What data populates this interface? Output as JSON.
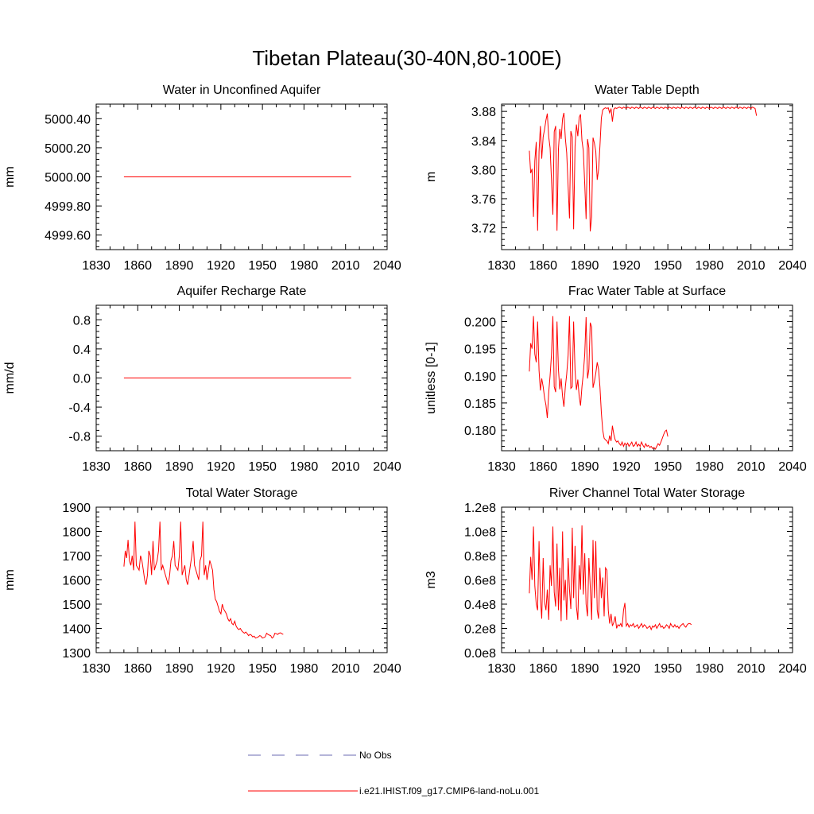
{
  "page": {
    "title": "Tibetan Plateau(30-40N,80-100E)"
  },
  "legend": {
    "placement": "bottom-center",
    "items": [
      {
        "label": "No Obs",
        "color": "#6b6bb3",
        "dash": "dashed"
      },
      {
        "label": "i.e21.IHIST.f09_g17.CMIP6-land-noLu.001",
        "color": "#ff0000",
        "dash": "solid"
      }
    ]
  },
  "chart_data": [
    {
      "type": "line",
      "title": "Water in Unconfined Aquifer",
      "ylabel": "mm",
      "xlim": [
        1830,
        2040
      ],
      "xticks": [
        1830,
        1860,
        1890,
        1920,
        1950,
        1980,
        2010,
        2040
      ],
      "xtick_labels": [
        "1830",
        "1860",
        "1890",
        "1920",
        "1950",
        "1980",
        "2010",
        "2040"
      ],
      "ylim": [
        4999.5,
        5000.5
      ],
      "yticks": [
        4999.6,
        4999.8,
        5000.0,
        5000.2,
        5000.4
      ],
      "ytick_labels": [
        "4999.60",
        "4999.80",
        "5000.00",
        "5000.20",
        "5000.40"
      ],
      "color": "#ff0000",
      "series": [
        {
          "x": [
            1850,
            2014
          ],
          "y": [
            5000.0,
            5000.0
          ]
        }
      ]
    },
    {
      "type": "line",
      "title": "Water Table Depth",
      "ylabel": "m",
      "xlim": [
        1830,
        2040
      ],
      "xticks": [
        1830,
        1860,
        1890,
        1920,
        1950,
        1980,
        2010,
        2040
      ],
      "xtick_labels": [
        "1830",
        "1860",
        "1890",
        "1920",
        "1950",
        "1980",
        "2010",
        "2040"
      ],
      "ylim": [
        3.69,
        3.89
      ],
      "yticks": [
        3.72,
        3.76,
        3.8,
        3.84,
        3.88
      ],
      "ytick_labels": [
        "3.72",
        "3.76",
        "3.80",
        "3.84",
        "3.88"
      ],
      "color": "#ff0000",
      "series": [
        {
          "x_start": 1850,
          "x_step": 1,
          "y": [
            3.826,
            3.795,
            3.801,
            3.735,
            3.812,
            3.838,
            3.716,
            3.825,
            3.86,
            3.815,
            3.845,
            3.855,
            3.868,
            3.877,
            3.845,
            3.83,
            3.787,
            3.738,
            3.852,
            3.86,
            3.716,
            3.828,
            3.856,
            3.842,
            3.87,
            3.878,
            3.843,
            3.823,
            3.777,
            3.733,
            3.853,
            3.845,
            3.718,
            3.832,
            3.862,
            3.846,
            3.872,
            3.876,
            3.84,
            3.826,
            3.78,
            3.732,
            3.842,
            3.83,
            3.715,
            3.735,
            3.844,
            3.836,
            3.825,
            3.786,
            3.8,
            3.832,
            3.871,
            3.882,
            3.884,
            3.885,
            3.884,
            3.885,
            3.878,
            3.884,
            3.866,
            3.883,
            3.885,
            3.884,
            3.885,
            3.886,
            3.885,
            3.884,
            3.886,
            3.885,
            3.884,
            3.886,
            3.885,
            3.884,
            3.886,
            3.885,
            3.884,
            3.886,
            3.885,
            3.884,
            3.886,
            3.885,
            3.884,
            3.886,
            3.885,
            3.884,
            3.886,
            3.885,
            3.884,
            3.886,
            3.885,
            3.884,
            3.886,
            3.885,
            3.884,
            3.886,
            3.885,
            3.884,
            3.886,
            3.885,
            3.884,
            3.886,
            3.885,
            3.884,
            3.886,
            3.885,
            3.884,
            3.886,
            3.885,
            3.884,
            3.886,
            3.885,
            3.884,
            3.886,
            3.885,
            3.884,
            3.886,
            3.885,
            3.884,
            3.886,
            3.885,
            3.884,
            3.886,
            3.885,
            3.884,
            3.886,
            3.885,
            3.884,
            3.886,
            3.885,
            3.884,
            3.886,
            3.885,
            3.884,
            3.886,
            3.885,
            3.884,
            3.886,
            3.885,
            3.884,
            3.886,
            3.885,
            3.884,
            3.886,
            3.885,
            3.884,
            3.886,
            3.885,
            3.884,
            3.886,
            3.885,
            3.884,
            3.886,
            3.885,
            3.884,
            3.886,
            3.885,
            3.884,
            3.886,
            3.885,
            3.884,
            3.886,
            3.885,
            3.884,
            3.874
          ]
        }
      ]
    },
    {
      "type": "line",
      "title": "Aquifer Recharge Rate",
      "ylabel": "mm/d",
      "xlim": [
        1830,
        2040
      ],
      "xticks": [
        1830,
        1860,
        1890,
        1920,
        1950,
        1980,
        2010,
        2040
      ],
      "xtick_labels": [
        "1830",
        "1860",
        "1890",
        "1920",
        "1950",
        "1980",
        "2010",
        "2040"
      ],
      "ylim": [
        -1.0,
        1.0
      ],
      "yticks": [
        -0.8,
        -0.4,
        0.0,
        0.4,
        0.8
      ],
      "ytick_labels": [
        "-0.8",
        "-0.4",
        "0.0",
        "0.4",
        "0.8"
      ],
      "color": "#ff0000",
      "series": [
        {
          "x": [
            1850,
            2014
          ],
          "y": [
            0.0,
            0.0
          ]
        }
      ]
    },
    {
      "type": "line",
      "title": "Frac Water Table at Surface",
      "ylabel": "unitless [0-1]",
      "xlim": [
        1830,
        2040
      ],
      "xticks": [
        1830,
        1860,
        1890,
        1920,
        1950,
        1980,
        2010,
        2040
      ],
      "xtick_labels": [
        "1830",
        "1860",
        "1890",
        "1920",
        "1950",
        "1980",
        "2010",
        "2040"
      ],
      "ylim": [
        0.1762,
        0.203
      ],
      "yticks": [
        0.18,
        0.185,
        0.19,
        0.195,
        0.2
      ],
      "ytick_labels": [
        "0.180",
        "0.185",
        "0.190",
        "0.195",
        "0.200"
      ],
      "color": "#ff0000",
      "series": [
        {
          "x_start": 1850,
          "x_step": 1,
          "y": [
            0.1908,
            0.196,
            0.195,
            0.201,
            0.194,
            0.1925,
            0.2,
            0.191,
            0.1873,
            0.1895,
            0.188,
            0.186,
            0.1846,
            0.1822,
            0.187,
            0.19,
            0.1938,
            0.201,
            0.188,
            0.187,
            0.2,
            0.1912,
            0.1875,
            0.1895,
            0.1862,
            0.1843,
            0.188,
            0.1903,
            0.1938,
            0.201,
            0.1877,
            0.188,
            0.2,
            0.191,
            0.1874,
            0.1893,
            0.1862,
            0.1845,
            0.188,
            0.1904,
            0.194,
            0.2008,
            0.1895,
            0.1912,
            0.1998,
            0.199,
            0.1878,
            0.189,
            0.1905,
            0.1925,
            0.1912,
            0.188,
            0.1832,
            0.18,
            0.1785,
            0.1782,
            0.178,
            0.1775,
            0.179,
            0.178,
            0.1808,
            0.1792,
            0.1782,
            0.1778,
            0.178,
            0.1775,
            0.1772,
            0.1778,
            0.177,
            0.1776,
            0.1772,
            0.1776,
            0.177,
            0.1774,
            0.1778,
            0.177,
            0.1772,
            0.1778,
            0.177,
            0.1774,
            0.177,
            0.1778,
            0.1772,
            0.1768,
            0.1775,
            0.177,
            0.1772,
            0.1768,
            0.177,
            0.1766,
            0.1768,
            0.1765,
            0.177,
            0.1775,
            0.1772,
            0.1778,
            0.1785,
            0.1792,
            0.1798,
            0.18,
            0.1788
          ]
        }
      ]
    },
    {
      "type": "line",
      "title": "Total Water Storage",
      "ylabel": "mm",
      "xlim": [
        1830,
        2040
      ],
      "xticks": [
        1830,
        1860,
        1890,
        1920,
        1950,
        1980,
        2010,
        2040
      ],
      "xtick_labels": [
        "1830",
        "1860",
        "1890",
        "1920",
        "1950",
        "1980",
        "2010",
        "2040"
      ],
      "ylim": [
        1300,
        1900
      ],
      "yticks": [
        1300,
        1400,
        1500,
        1600,
        1700,
        1800,
        1900
      ],
      "ytick_labels": [
        "1300",
        "1400",
        "1500",
        "1600",
        "1700",
        "1800",
        "1900"
      ],
      "color": "#ff0000",
      "series": [
        {
          "x_start": 1850,
          "x_step": 1,
          "y": [
            1655,
            1720,
            1690,
            1765,
            1680,
            1660,
            1700,
            1640,
            1840,
            1660,
            1650,
            1640,
            1700,
            1680,
            1640,
            1600,
            1580,
            1620,
            1720,
            1700,
            1620,
            1760,
            1640,
            1660,
            1680,
            1720,
            1840,
            1640,
            1660,
            1640,
            1620,
            1600,
            1580,
            1620,
            1680,
            1700,
            1760,
            1660,
            1650,
            1640,
            1700,
            1840,
            1620,
            1640,
            1660,
            1600,
            1580,
            1620,
            1660,
            1700,
            1760,
            1660,
            1640,
            1620,
            1600,
            1680,
            1700,
            1840,
            1620,
            1660,
            1600,
            1640,
            1680,
            1660,
            1640,
            1560,
            1520,
            1510,
            1490,
            1470,
            1460,
            1500,
            1480,
            1470,
            1460,
            1440,
            1430,
            1440,
            1420,
            1415,
            1430,
            1410,
            1400,
            1395,
            1400,
            1390,
            1385,
            1380,
            1385,
            1378,
            1370,
            1375,
            1372,
            1365,
            1368,
            1360,
            1362,
            1365,
            1370,
            1368,
            1360,
            1362,
            1365,
            1380,
            1375,
            1372,
            1370,
            1360,
            1365,
            1380,
            1378,
            1375,
            1380,
            1382,
            1378,
            1375
          ]
        }
      ]
    },
    {
      "type": "line",
      "title": "River Channel Total Water Storage",
      "ylabel": "m3",
      "xlim": [
        1830,
        2040
      ],
      "xticks": [
        1830,
        1860,
        1890,
        1920,
        1950,
        1980,
        2010,
        2040
      ],
      "xtick_labels": [
        "1830",
        "1860",
        "1890",
        "1920",
        "1950",
        "1980",
        "2010",
        "2040"
      ],
      "ylim": [
        0,
        120000000
      ],
      "yticks": [
        0,
        20000000,
        40000000,
        60000000,
        80000000,
        100000000,
        120000000
      ],
      "ytick_labels": [
        "0.0e8",
        "0.2e8",
        "0.4e8",
        "0.6e8",
        "0.8e8",
        "1.0e8",
        "1.2e8"
      ],
      "color": "#ff0000",
      "series": [
        {
          "x_start": 1850,
          "x_step": 1,
          "y": [
            49000000,
            79000000,
            60000000,
            104000000,
            55000000,
            40000000,
            35000000,
            92000000,
            45000000,
            28000000,
            78000000,
            42000000,
            35000000,
            52000000,
            27000000,
            72000000,
            55000000,
            104000000,
            50000000,
            38000000,
            90000000,
            35000000,
            70000000,
            26000000,
            100000000,
            43000000,
            60000000,
            27000000,
            78000000,
            52000000,
            36000000,
            103000000,
            45000000,
            88000000,
            38000000,
            27000000,
            72000000,
            52000000,
            105000000,
            48000000,
            82000000,
            40000000,
            30000000,
            78000000,
            55000000,
            27000000,
            93000000,
            45000000,
            92000000,
            35000000,
            28000000,
            70000000,
            45000000,
            62000000,
            30000000,
            70000000,
            68000000,
            35000000,
            24000000,
            32000000,
            22000000,
            25000000,
            30000000,
            20000000,
            23000000,
            22000000,
            24000000,
            21000000,
            35000000,
            41000000,
            22000000,
            24000000,
            21000000,
            23000000,
            22000000,
            24000000,
            21000000,
            22000000,
            23000000,
            20000000,
            22000000,
            24000000,
            21000000,
            23000000,
            22000000,
            20000000,
            21000000,
            22000000,
            19000000,
            22000000,
            21000000,
            23000000,
            20000000,
            22000000,
            24000000,
            21000000,
            22000000,
            20000000,
            21000000,
            23000000,
            22000000,
            20000000,
            24000000,
            22000000,
            21000000,
            23000000,
            21000000,
            22000000,
            20000000,
            22000000,
            23000000,
            24000000,
            22000000,
            21000000,
            23000000,
            24000000,
            24000000,
            23000000
          ]
        }
      ]
    }
  ]
}
